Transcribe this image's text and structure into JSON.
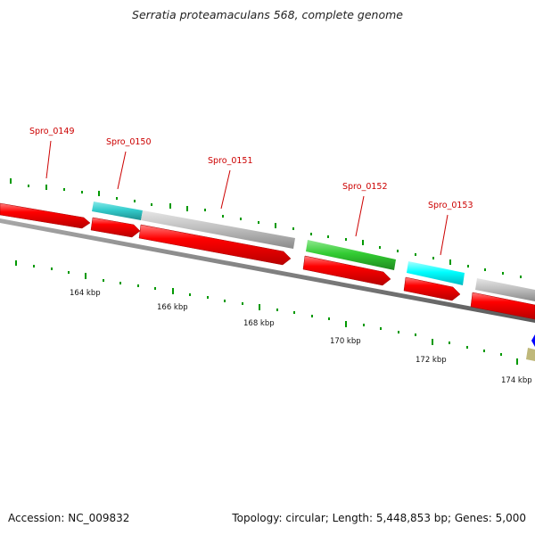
{
  "title": "Serratia proteamaculans 568, complete genome",
  "accession": "Accession: NC_009832",
  "summary": "Topology: circular; Length: 5,448,853 bp; Genes: 5,000",
  "colors": {
    "cds_forward": "#ff0000",
    "track_gray": "#c0c0c0",
    "track_cyan_dark": "#33cccc",
    "track_cyan": "#00ffff",
    "track_green": "#33cc33",
    "track_blue": "#0000ff",
    "track_olive": "#bfb87a",
    "tick_green": "#009900",
    "backbone": "#808080",
    "gene_label": "#cc0000"
  },
  "scale_labels": [
    "164 kbp",
    "166 kbp",
    "168 kbp",
    "170 kbp",
    "172 kbp",
    "174 kbp"
  ],
  "gene_labels": [
    "Spro_0149",
    "Spro_0150",
    "Spro_0151",
    "Spro_0152",
    "Spro_0153"
  ]
}
